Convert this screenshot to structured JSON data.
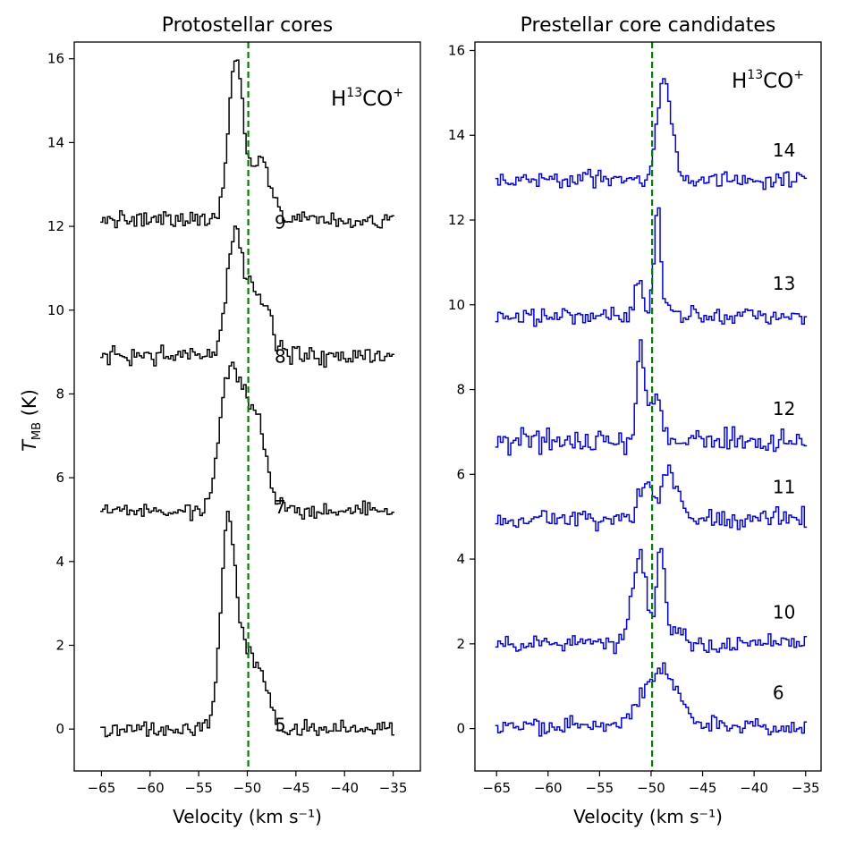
{
  "ylabel_main": "T",
  "ylabel_sub": "MB",
  "ylabel_unit": " (K)",
  "xlabel": "Velocity (km s⁻¹)",
  "molecule": {
    "base": "H",
    "sup": "13",
    "mid": "CO",
    "charge": "+"
  },
  "chart_data": [
    {
      "type": "line",
      "title": "Protostellar cores",
      "xlabel": "Velocity (km s⁻¹)",
      "ylabel": "T_MB (K)",
      "xlim": [
        -67.8,
        -32.2
      ],
      "ylim": [
        -1.0,
        16.4
      ],
      "xticks": [
        -65,
        -60,
        -55,
        -50,
        -45,
        -40,
        -35
      ],
      "xtick_labels": [
        "−65",
        "−60",
        "−55",
        "−50",
        "−45",
        "−40",
        "−35"
      ],
      "yticks": [
        0,
        2,
        4,
        6,
        8,
        10,
        12,
        14,
        16
      ],
      "ytick_labels": [
        "0",
        "2",
        "4",
        "6",
        "8",
        "10",
        "12",
        "14",
        "16"
      ],
      "vline": {
        "x": -49.9,
        "color": "#008000",
        "style": "dashed"
      },
      "annotation": "H13CO+",
      "line_color": "#000000",
      "series": [
        {
          "name": "5",
          "label_x": -47.2,
          "label_y": -0.05,
          "baseline": 0.0,
          "noise": 0.09,
          "seed": 5,
          "components": [
            {
              "amp": 4.5,
              "center": -52.0,
              "sigma": 0.75
            },
            {
              "amp": 1.8,
              "center": -50.0,
              "sigma": 1.3
            },
            {
              "amp": 0.45,
              "center": -48.2,
              "sigma": 0.6
            }
          ]
        },
        {
          "name": "7",
          "label_x": -47.2,
          "label_y": 5.15,
          "baseline": 5.2,
          "noise": 0.09,
          "seed": 7,
          "components": [
            {
              "amp": 1.7,
              "center": -52.2,
              "sigma": 0.8
            },
            {
              "amp": 2.8,
              "center": -50.5,
              "sigma": 1.5
            },
            {
              "amp": 0.8,
              "center": -48.5,
              "sigma": 0.7
            }
          ]
        },
        {
          "name": "8",
          "label_x": -47.2,
          "label_y": 8.75,
          "baseline": 8.9,
          "noise": 0.11,
          "seed": 8,
          "components": [
            {
              "amp": 2.2,
              "center": -51.4,
              "sigma": 0.75
            },
            {
              "amp": 1.5,
              "center": -49.8,
              "sigma": 1.3
            },
            {
              "amp": 0.5,
              "center": -47.9,
              "sigma": 0.7
            }
          ]
        },
        {
          "name": "9",
          "label_x": -47.2,
          "label_y": 11.95,
          "baseline": 12.15,
          "noise": 0.1,
          "seed": 9,
          "components": [
            {
              "amp": 3.3,
              "center": -51.2,
              "sigma": 0.7
            },
            {
              "amp": 1.0,
              "center": -49.5,
              "sigma": 1.6
            },
            {
              "amp": 0.6,
              "center": -48.3,
              "sigma": 0.8
            }
          ]
        }
      ]
    },
    {
      "type": "line",
      "title": "Prestellar core candidates",
      "xlabel": "Velocity (km s⁻¹)",
      "ylabel": "",
      "xlim": [
        -67.1,
        -33.5
      ],
      "ylim": [
        -1.0,
        16.2
      ],
      "xticks": [
        -65,
        -60,
        -55,
        -50,
        -45,
        -40,
        -35
      ],
      "xtick_labels": [
        "−65",
        "−60",
        "−55",
        "−50",
        "−45",
        "−40",
        "−35"
      ],
      "yticks": [
        0,
        2,
        4,
        6,
        8,
        10,
        12,
        14,
        16
      ],
      "ytick_labels": [
        "0",
        "2",
        "4",
        "6",
        "8",
        "10",
        "12",
        "14",
        "16"
      ],
      "vline": {
        "x": -49.9,
        "color": "#008000",
        "style": "dashed"
      },
      "annotation": "H13CO+",
      "line_color": "#0000ff",
      "series": [
        {
          "name": "6",
          "label_x": -38.2,
          "label_y": 0.7,
          "baseline": 0.05,
          "noise": 0.1,
          "seed": 6,
          "components": [
            {
              "amp": 0.6,
              "center": -50.8,
              "sigma": 1.0
            },
            {
              "amp": 1.2,
              "center": -48.8,
              "sigma": 1.0
            },
            {
              "amp": 0.35,
              "center": -47.0,
              "sigma": 0.8
            }
          ]
        },
        {
          "name": "10",
          "label_x": -38.2,
          "label_y": 2.6,
          "baseline": 2.0,
          "noise": 0.1,
          "seed": 10,
          "components": [
            {
              "amp": 1.7,
              "center": -51.4,
              "sigma": 0.55
            },
            {
              "amp": 0.9,
              "center": -50.6,
              "sigma": 0.5
            },
            {
              "amp": 2.2,
              "center": -49.1,
              "sigma": 0.4
            },
            {
              "amp": 0.4,
              "center": -47.8,
              "sigma": 0.8
            }
          ]
        },
        {
          "name": "11",
          "label_x": -38.2,
          "label_y": 5.55,
          "baseline": 4.95,
          "noise": 0.12,
          "seed": 11,
          "components": [
            {
              "amp": 0.8,
              "center": -50.5,
              "sigma": 0.7
            },
            {
              "amp": 1.15,
              "center": -48.4,
              "sigma": 0.55
            },
            {
              "amp": 0.3,
              "center": -47.0,
              "sigma": 0.6
            }
          ]
        },
        {
          "name": "12",
          "label_x": -38.2,
          "label_y": 7.4,
          "baseline": 6.8,
          "noise": 0.13,
          "seed": 12,
          "components": [
            {
              "amp": 2.3,
              "center": -51.1,
              "sigma": 0.3
            },
            {
              "amp": 0.9,
              "center": -50.4,
              "sigma": 0.35
            },
            {
              "amp": 1.1,
              "center": -49.4,
              "sigma": 0.35
            }
          ]
        },
        {
          "name": "13",
          "label_x": -38.2,
          "label_y": 10.35,
          "baseline": 9.75,
          "noise": 0.1,
          "seed": 13,
          "components": [
            {
              "amp": 0.9,
              "center": -51.2,
              "sigma": 0.35
            },
            {
              "amp": 2.5,
              "center": -49.4,
              "sigma": 0.32
            },
            {
              "amp": 0.35,
              "center": -48.5,
              "sigma": 0.4
            }
          ]
        },
        {
          "name": "14",
          "label_x": -38.2,
          "label_y": 13.5,
          "baseline": 12.95,
          "noise": 0.1,
          "seed": 14,
          "components": [
            {
              "amp": 2.35,
              "center": -48.8,
              "sigma": 0.6
            },
            {
              "amp": 0.5,
              "center": -47.8,
              "sigma": 0.5
            }
          ]
        }
      ]
    }
  ]
}
